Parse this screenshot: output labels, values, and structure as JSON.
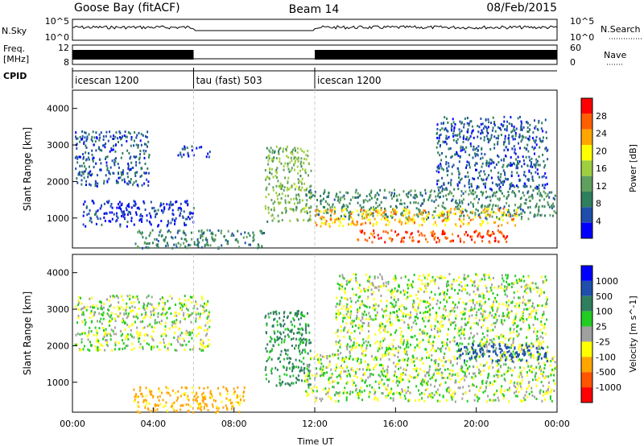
{
  "header": {
    "station": "Goose Bay (fitACF)",
    "beam": "Beam 14",
    "date": "08/Feb/2015"
  },
  "strip_labels": {
    "nsky": "N.Sky",
    "nsky_ticks": [
      "10^5",
      "10^0"
    ],
    "nsearch": "N.Search",
    "nsearch_ticks": [
      "10^5",
      "10^0"
    ],
    "freq": "Freq.",
    "freq_unit": "[MHz]",
    "freq_ticks": [
      "12",
      "8"
    ],
    "nave": "Nave",
    "nave_ticks": [
      "60",
      "0"
    ],
    "cpid": "CPID"
  },
  "cpid_segments": [
    {
      "label": "icescan 1200",
      "start_h": 0
    },
    {
      "label": "tau (fast) 503",
      "start_h": 6
    },
    {
      "label": "icescan 1200",
      "start_h": 12
    }
  ],
  "colors": {
    "power": [
      "#0000ff",
      "#1f4faa",
      "#2f7f5f",
      "#5fa05f",
      "#9fcf3f",
      "#ffff00",
      "#ffa500",
      "#ff5f00",
      "#ff0000"
    ],
    "velocity": [
      "#0000ff",
      "#1f4faa",
      "#2f7f5f",
      "#22cc22",
      "#a0a0a0",
      "#ffff00",
      "#ffa500",
      "#ff5500",
      "#ff0000"
    ]
  },
  "chart_data": [
    {
      "type": "heatmap",
      "panel": "power",
      "ylabel": "Slant Range [km]",
      "xlabel": "",
      "xlim_h": [
        0,
        24
      ],
      "ylim_km": [
        180,
        4500
      ],
      "yticks": [
        1000,
        2000,
        3000,
        4000
      ],
      "colorbar": {
        "label": "Power [dB]",
        "range": [
          0,
          32
        ],
        "ticks": [
          4,
          8,
          12,
          16,
          20,
          24,
          28
        ]
      },
      "regions": [
        {
          "t0": 0.1,
          "t1": 3.8,
          "r0": 1900,
          "r1": 3400,
          "value": 6
        },
        {
          "t0": 5.2,
          "t1": 6.8,
          "r0": 2700,
          "r1": 3000,
          "value": 5
        },
        {
          "t0": 0.5,
          "t1": 6.0,
          "r0": 800,
          "r1": 1500,
          "value": 4
        },
        {
          "t0": 3.0,
          "t1": 9.5,
          "r0": 200,
          "r1": 700,
          "value": 9
        },
        {
          "t0": 9.5,
          "t1": 11.8,
          "r0": 900,
          "r1": 3000,
          "value": 14
        },
        {
          "t0": 11.5,
          "t1": 23.9,
          "r0": 1000,
          "r1": 1800,
          "value": 10
        },
        {
          "t0": 12.0,
          "t1": 22.0,
          "r0": 800,
          "r1": 1300,
          "value": 22
        },
        {
          "t0": 14.0,
          "t1": 21.5,
          "r0": 350,
          "r1": 700,
          "value": 28
        },
        {
          "t0": 18.0,
          "t1": 23.5,
          "r0": 1800,
          "r1": 3800,
          "value": 6
        }
      ]
    },
    {
      "type": "heatmap",
      "panel": "velocity",
      "ylabel": "Slant Range [km]",
      "xlabel": "Time UT",
      "xlim_h": [
        0,
        24
      ],
      "ylim_km": [
        180,
        4500
      ],
      "yticks": [
        1000,
        2000,
        3000,
        4000
      ],
      "xticks": [
        "00:00",
        "04:00",
        "08:00",
        "12:00",
        "16:00",
        "20:00",
        "00:00"
      ],
      "colorbar": {
        "label": "Velocity [m s^-1]",
        "ticks": [
          1000,
          500,
          100,
          25,
          -25,
          -100,
          -500,
          -1000
        ]
      },
      "regions": [
        {
          "t0": 0.1,
          "t1": 6.8,
          "r0": 1900,
          "r1": 3400,
          "value": 0
        },
        {
          "t0": 3.0,
          "t1": 8.5,
          "r0": 200,
          "r1": 900,
          "value": -150
        },
        {
          "t0": 9.5,
          "t1": 11.8,
          "r0": 900,
          "r1": 3000,
          "value": 150
        },
        {
          "t0": 11.5,
          "t1": 23.9,
          "r0": 500,
          "r1": 1800,
          "value": 0
        },
        {
          "t0": 13.0,
          "t1": 23.5,
          "r0": 1800,
          "r1": 4000,
          "value": 0
        },
        {
          "t0": 19.0,
          "t1": 23.5,
          "r0": 1600,
          "r1": 2100,
          "value": 600
        }
      ]
    }
  ]
}
